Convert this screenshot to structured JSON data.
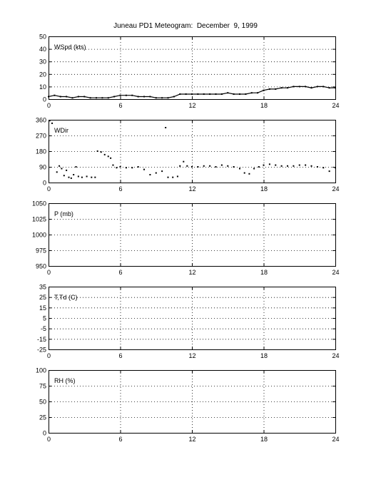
{
  "figure": {
    "title": "Juneau PD1 Meteogram:  December  9, 1999"
  },
  "chart_data": [
    {
      "type": "scatter",
      "panel_label": "WSpd (kts)",
      "xlim": [
        0,
        24
      ],
      "xticks": [
        "0",
        "6",
        "12",
        "18",
        "24"
      ],
      "ylim": [
        0,
        50
      ],
      "yticks": [
        "0",
        "10",
        "20",
        "30",
        "40",
        "50"
      ],
      "grid": true,
      "series": [
        {
          "x": [
            0,
            0.5,
            1,
            1.5,
            2,
            2.5,
            3,
            3.5,
            4,
            4.5,
            5,
            5.5,
            6,
            6.5,
            7,
            7.5,
            8,
            8.5,
            9,
            9.5,
            10,
            10.5,
            11,
            11.5,
            12,
            12.5,
            13,
            13.5,
            14,
            14.5,
            15,
            15.5,
            16,
            16.5,
            17,
            17.5,
            18,
            18.5,
            19,
            19.5,
            20,
            20.5,
            21,
            21.5,
            22,
            22.5,
            23,
            23.5,
            24
          ],
          "values": [
            2,
            3,
            2,
            2,
            1,
            2,
            2,
            1,
            1,
            1,
            1,
            2,
            3,
            3,
            3,
            2,
            2,
            2,
            1,
            1,
            1,
            2,
            4,
            4,
            4,
            4,
            4,
            4,
            4,
            4,
            5,
            4,
            4,
            4,
            5,
            5,
            7,
            8,
            8,
            9,
            9,
            10,
            10,
            10,
            9,
            10,
            10,
            9,
            9
          ]
        }
      ]
    },
    {
      "type": "scatter",
      "panel_label": "WDir",
      "xlim": [
        0,
        24
      ],
      "xticks": [
        "0",
        "6",
        "12",
        "18",
        "24"
      ],
      "ylim": [
        0,
        360
      ],
      "yticks": [
        "0",
        "90",
        "180",
        "270",
        "360"
      ],
      "grid": true,
      "series": [
        {
          "x": [
            0.1,
            0.3,
            0.7,
            0.9,
            1.1,
            1.3,
            1.5,
            1.7,
            1.9,
            2.1,
            2.3,
            2.5,
            2.8,
            3.2,
            3.6,
            3.9,
            4.1,
            4.4,
            4.7,
            5.0,
            5.2,
            5.4,
            5.7,
            6.0,
            6.5,
            7.0,
            7.5,
            8.0,
            8.5,
            9.0,
            9.5,
            9.8,
            10.0,
            10.4,
            10.8,
            11.0,
            11.3,
            11.6,
            12.0,
            12.5,
            13.0,
            13.5,
            14.0,
            14.5,
            15.0,
            15.5,
            16.0,
            16.4,
            16.8,
            17.2,
            17.6,
            18.0,
            18.5,
            19.0,
            19.5,
            20.0,
            20.5,
            21.0,
            21.5,
            22.0,
            22.5,
            23.0,
            23.5,
            24.0
          ],
          "values": [
            355,
            340,
            60,
            95,
            80,
            40,
            70,
            30,
            25,
            45,
            90,
            35,
            30,
            35,
            30,
            30,
            180,
            175,
            160,
            150,
            140,
            100,
            85,
            90,
            85,
            85,
            90,
            75,
            45,
            55,
            65,
            315,
            30,
            30,
            35,
            95,
            120,
            95,
            90,
            90,
            95,
            95,
            90,
            100,
            95,
            90,
            80,
            55,
            50,
            80,
            90,
            100,
            105,
            100,
            95,
            95,
            95,
            100,
            100,
            95,
            90,
            85,
            65,
            85
          ]
        }
      ]
    },
    {
      "type": "scatter",
      "panel_label": "P (mb)",
      "xlim": [
        0,
        24
      ],
      "xticks": [
        "0",
        "6",
        "12",
        "18",
        "24"
      ],
      "ylim": [
        950,
        1050
      ],
      "yticks": [
        "950",
        "975",
        "1000",
        "1025",
        "1050"
      ],
      "grid": true,
      "series": []
    },
    {
      "type": "scatter",
      "panel_label": "T,Td (C)",
      "xlim": [
        0,
        24
      ],
      "xticks": [
        "0",
        "6",
        "12",
        "18",
        "24"
      ],
      "ylim": [
        -25,
        35
      ],
      "yticks": [
        "-25",
        "-15",
        "-5",
        "5",
        "15",
        "25",
        "35"
      ],
      "grid": true,
      "series": []
    },
    {
      "type": "scatter",
      "panel_label": "RH (%)",
      "xlim": [
        0,
        24
      ],
      "xticks": [
        "0",
        "6",
        "12",
        "18",
        "24"
      ],
      "ylim": [
        0,
        100
      ],
      "yticks": [
        "0",
        "25",
        "50",
        "75",
        "100"
      ],
      "grid": true,
      "series": []
    }
  ]
}
